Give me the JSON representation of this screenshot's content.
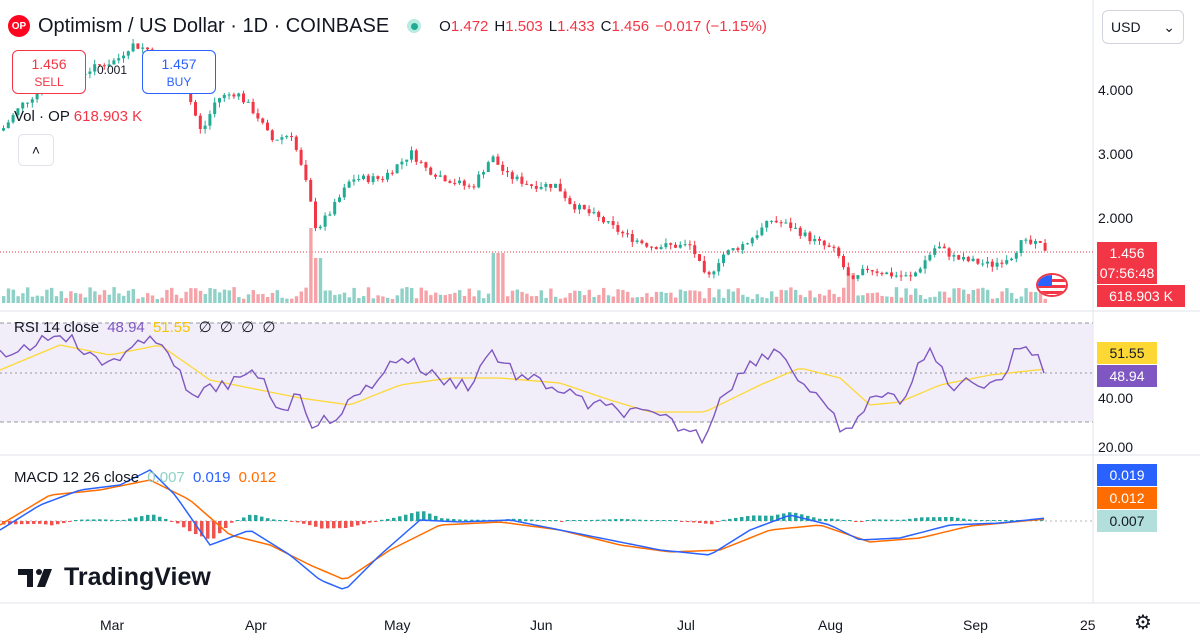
{
  "header": {
    "logo_text": "OP",
    "title": "Optimism / US Dollar · 1D · COINBASE",
    "o_label": "O",
    "o_value": "1.472",
    "h_label": "H",
    "h_value": "1.503",
    "l_label": "L",
    "l_value": "1.433",
    "c_label": "C",
    "c_value": "1.456",
    "change": "−0.017 (−1.15%)",
    "currency": "USD"
  },
  "trade": {
    "sell_price": "1.456",
    "sell_label": "SELL",
    "spread": "0.001",
    "buy_price": "1.457",
    "buy_label": "BUY"
  },
  "volume": {
    "label": "Vol · OP",
    "value": "618.903 K"
  },
  "price_scale": [
    "4.000",
    "3.000",
    "2.000"
  ],
  "last_price": {
    "price": "1.456",
    "countdown": "07:56:48",
    "volume": "618.903 K"
  },
  "rsi": {
    "title": "RSI 14 close",
    "value": "48.94",
    "ma_value": "51.55",
    "placeholders": [
      "∅",
      "∅",
      "∅",
      "∅"
    ],
    "scale": [
      "40.00",
      "20.00"
    ]
  },
  "macd": {
    "title": "MACD 12 26 close",
    "hist": "0.007",
    "macd": "0.019",
    "signal": "0.012"
  },
  "x_axis": [
    "Mar",
    "Apr",
    "May",
    "Jun",
    "Jul",
    "Aug",
    "Sep",
    "25"
  ],
  "brand": "TradingView",
  "colors": {
    "up": "#22ab94",
    "down": "#f23645",
    "rsi_line": "#7e57c2",
    "rsi_ma": "#fdd835",
    "macd_line": "#2962ff",
    "signal_line": "#ff6d00",
    "hist_up": "#26a69a",
    "hist_down": "#ef5350"
  },
  "icons": [
    "settings-gear-icon",
    "chevron-up-icon",
    "chevron-down-icon",
    "us-flag-icon",
    "tradingview-logo-icon"
  ]
}
